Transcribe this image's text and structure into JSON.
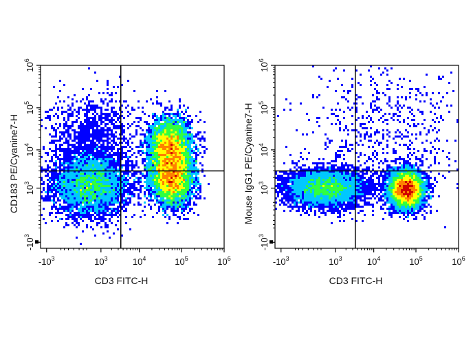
{
  "colors": {
    "density_low": "#0000ff",
    "density_mid_low": "#00c8ff",
    "density_mid": "#30ff40",
    "density_mid_high": "#ffff00",
    "density_high": "#ff8000",
    "density_peak": "#d00000",
    "axis": "#000000",
    "gate": "#000000"
  },
  "chart_data": [
    {
      "type": "scatter",
      "subtype": "flow-cytometry-density",
      "title": "",
      "xlabel": "CD3 FITC-H",
      "ylabel": "CD183 PE/Cyanine7-H",
      "x_scale": "biexponential",
      "y_scale": "biexponential",
      "xlim": [
        -1500,
        1000000
      ],
      "ylim": [
        -1500,
        1000000
      ],
      "x_ticks": [
        {
          "value": -1000,
          "label": "-10",
          "exp": "3"
        },
        {
          "value": 1000,
          "label": "10",
          "exp": "3"
        },
        {
          "value": 10000,
          "label": "10",
          "exp": "4"
        },
        {
          "value": 100000,
          "label": "10",
          "exp": "5"
        },
        {
          "value": 1000000,
          "label": "10",
          "exp": "6"
        }
      ],
      "y_ticks": [
        {
          "value": -1000,
          "label": "-10",
          "exp": "3"
        },
        {
          "value": 1000,
          "label": "10",
          "exp": "3"
        },
        {
          "value": 10000,
          "label": "10",
          "exp": "4"
        },
        {
          "value": 100000,
          "label": "10",
          "exp": "5"
        },
        {
          "value": 1000000,
          "label": "10",
          "exp": "6"
        }
      ],
      "quadrant_gate": {
        "x": 3500,
        "y": 3000
      },
      "populations": [
        {
          "x": 450,
          "y": 1200,
          "spread_x": 0.45,
          "spread_y": 0.35,
          "weight": 0.3,
          "density": 0.55
        },
        {
          "x": 500,
          "y": 12000,
          "spread_x": 0.5,
          "spread_y": 0.6,
          "weight": 0.12,
          "density": 0.15
        },
        {
          "x": 55000,
          "y": 11000,
          "spread_x": 0.25,
          "spread_y": 0.35,
          "weight": 0.3,
          "density": 1.0
        },
        {
          "x": 60000,
          "y": 1700,
          "spread_x": 0.25,
          "spread_y": 0.3,
          "weight": 0.28,
          "density": 0.9
        }
      ]
    },
    {
      "type": "scatter",
      "subtype": "flow-cytometry-density",
      "title": "",
      "xlabel": "CD3 FITC-H",
      "ylabel": "Mouse IgG1 PE/Cyanine7-H",
      "x_scale": "biexponential",
      "y_scale": "biexponential",
      "xlim": [
        -1500,
        1000000
      ],
      "ylim": [
        -1500,
        1000000
      ],
      "x_ticks": [
        {
          "value": -1000,
          "label": "-10",
          "exp": "3"
        },
        {
          "value": 1000,
          "label": "10",
          "exp": "3"
        },
        {
          "value": 10000,
          "label": "10",
          "exp": "4"
        },
        {
          "value": 100000,
          "label": "10",
          "exp": "5"
        },
        {
          "value": 1000000,
          "label": "10",
          "exp": "6"
        }
      ],
      "y_ticks": [
        {
          "value": -1000,
          "label": "-10",
          "exp": "3"
        },
        {
          "value": 1000,
          "label": "10",
          "exp": "3"
        },
        {
          "value": 10000,
          "label": "10",
          "exp": "4"
        },
        {
          "value": 100000,
          "label": "10",
          "exp": "5"
        },
        {
          "value": 1000000,
          "label": "10",
          "exp": "6"
        }
      ],
      "quadrant_gate": {
        "x": 3500,
        "y": 3000
      },
      "populations": [
        {
          "x": 450,
          "y": 1000,
          "spread_x": 0.45,
          "spread_y": 0.22,
          "weight": 0.45,
          "density": 0.6
        },
        {
          "x": 60000,
          "y": 900,
          "spread_x": 0.2,
          "spread_y": 0.22,
          "weight": 0.5,
          "density": 1.0
        },
        {
          "x": 20000,
          "y": 30000,
          "spread_x": 1.0,
          "spread_y": 0.9,
          "weight": 0.05,
          "density": 0.05
        }
      ]
    }
  ]
}
